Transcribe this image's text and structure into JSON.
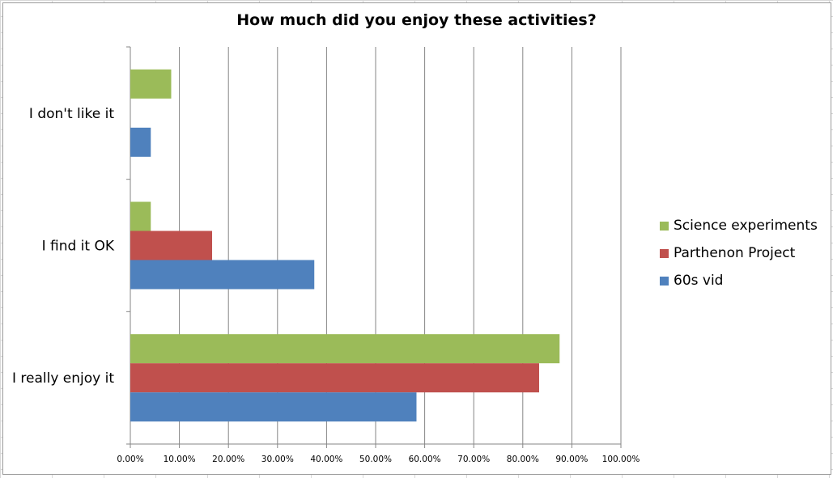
{
  "chart_data": {
    "type": "bar",
    "orientation": "horizontal",
    "title": "How much did you enjoy these activities?",
    "categories": [
      "I really enjoy it",
      "I find it OK",
      "I don't like it"
    ],
    "series": [
      {
        "name": "60s vid",
        "color": "#4f81bd",
        "values": [
          0.5833,
          0.375,
          0.0417
        ]
      },
      {
        "name": "Parthenon Project",
        "color": "#c0504d",
        "values": [
          0.8333,
          0.1667,
          0
        ]
      },
      {
        "name": "Science experiments",
        "color": "#9bbb59",
        "values": [
          0.875,
          0.0417,
          0.0833
        ]
      }
    ],
    "xlim": [
      0,
      1
    ],
    "xticks": [
      "0.00%",
      "10.00%",
      "20.00%",
      "30.00%",
      "40.00%",
      "50.00%",
      "60.00%",
      "70.00%",
      "80.00%",
      "90.00%",
      "100.00%"
    ],
    "legend": [
      "Science experiments",
      "Parthenon Project",
      "60s vid"
    ],
    "legend_position": "right",
    "grid": true
  }
}
